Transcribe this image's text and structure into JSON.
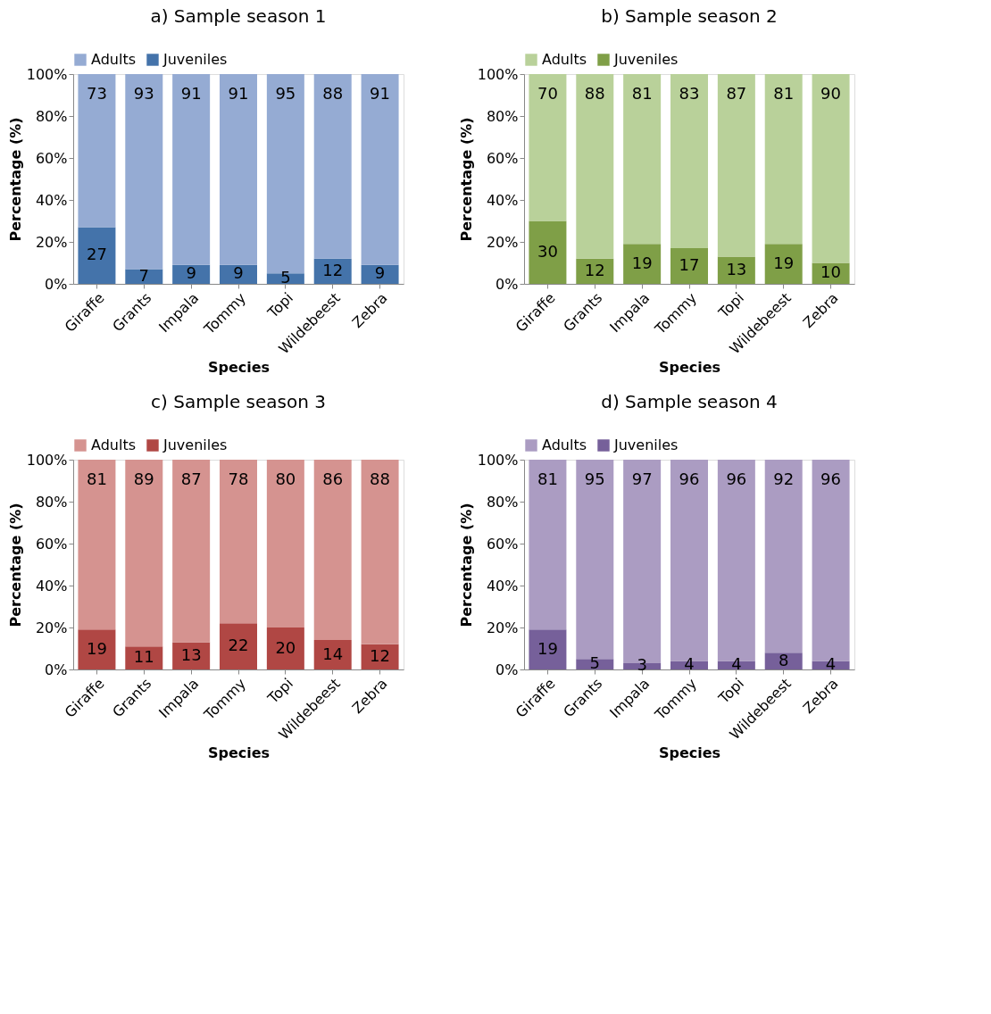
{
  "chart_data": [
    {
      "type": "bar",
      "title": "a)    Sample season 1",
      "xlabel": "Species",
      "ylabel": "Percentage (%)",
      "stacked": true,
      "data_labels": true,
      "legend": "top",
      "grid": false,
      "categories": [
        "Giraffe",
        "Grants",
        "Impala",
        "Tommy",
        "Topi",
        "Wildebeest",
        "Zebra"
      ],
      "ylim": [
        0,
        100
      ],
      "yticks": [
        {
          "value": 0,
          "label": "0%"
        },
        {
          "value": 20,
          "label": "20%"
        },
        {
          "value": 40,
          "label": "40%"
        },
        {
          "value": 60,
          "label": "60%"
        },
        {
          "value": 80,
          "label": "80%"
        },
        {
          "value": 100,
          "label": "100%"
        }
      ],
      "series": [
        {
          "name": "Juveniles",
          "color": "#4473aa",
          "values": [
            27,
            7,
            9,
            9,
            5,
            12,
            9
          ]
        },
        {
          "name": "Adults",
          "color": "#95abd3",
          "values": [
            73,
            93,
            91,
            91,
            95,
            88,
            91
          ]
        }
      ]
    },
    {
      "type": "bar",
      "title": "b)    Sample season 2",
      "xlabel": "Species",
      "ylabel": "Percentage (%)",
      "stacked": true,
      "data_labels": true,
      "legend": "top",
      "grid": false,
      "categories": [
        "Giraffe",
        "Grants",
        "Impala",
        "Tommy",
        "Topi",
        "Wildebeest",
        "Zebra"
      ],
      "ylim": [
        0,
        100
      ],
      "yticks": [
        {
          "value": 0,
          "label": "0%"
        },
        {
          "value": 20,
          "label": "20%"
        },
        {
          "value": 40,
          "label": "40%"
        },
        {
          "value": 60,
          "label": "60%"
        },
        {
          "value": 80,
          "label": "80%"
        },
        {
          "value": 100,
          "label": "100%"
        }
      ],
      "series": [
        {
          "name": "Juveniles",
          "color": "#7f9f47",
          "values": [
            30,
            12,
            19,
            17,
            13,
            19,
            10
          ]
        },
        {
          "name": "Adults",
          "color": "#b9d19a",
          "values": [
            70,
            88,
            81,
            83,
            87,
            81,
            90
          ]
        }
      ]
    },
    {
      "type": "bar",
      "title": "c)    Sample season 3",
      "xlabel": "Species",
      "ylabel": "Percentage (%)",
      "stacked": true,
      "data_labels": true,
      "legend": "top",
      "grid": false,
      "categories": [
        "Giraffe",
        "Grants",
        "Impala",
        "Tommy",
        "Topi",
        "Wildebeest",
        "Zebra"
      ],
      "ylim": [
        0,
        100
      ],
      "yticks": [
        {
          "value": 0,
          "label": "0%"
        },
        {
          "value": 20,
          "label": "20%"
        },
        {
          "value": 40,
          "label": "40%"
        },
        {
          "value": 60,
          "label": "60%"
        },
        {
          "value": 80,
          "label": "80%"
        },
        {
          "value": 100,
          "label": "100%"
        }
      ],
      "series": [
        {
          "name": "Juveniles",
          "color": "#b04744",
          "values": [
            19,
            11,
            13,
            22,
            20,
            14,
            12
          ]
        },
        {
          "name": "Adults",
          "color": "#d59390",
          "values": [
            81,
            89,
            87,
            78,
            80,
            86,
            88
          ]
        }
      ]
    },
    {
      "type": "bar",
      "title": "d)    Sample season 4",
      "xlabel": "Species",
      "ylabel": "Percentage (%)",
      "stacked": true,
      "data_labels": true,
      "legend": "top",
      "grid": false,
      "categories": [
        "Giraffe",
        "Grants",
        "Impala",
        "Tommy",
        "Topi",
        "Wildebeest",
        "Zebra"
      ],
      "ylim": [
        0,
        100
      ],
      "yticks": [
        {
          "value": 0,
          "label": "0%"
        },
        {
          "value": 20,
          "label": "20%"
        },
        {
          "value": 40,
          "label": "40%"
        },
        {
          "value": 60,
          "label": "60%"
        },
        {
          "value": 80,
          "label": "80%"
        },
        {
          "value": 100,
          "label": "100%"
        }
      ],
      "series": [
        {
          "name": "Juveniles",
          "color": "#76609a",
          "values": [
            19,
            5,
            3,
            4,
            4,
            8,
            4
          ]
        },
        {
          "name": "Adults",
          "color": "#ab9cc2",
          "values": [
            81,
            95,
            97,
            96,
            96,
            92,
            96
          ]
        }
      ]
    }
  ]
}
